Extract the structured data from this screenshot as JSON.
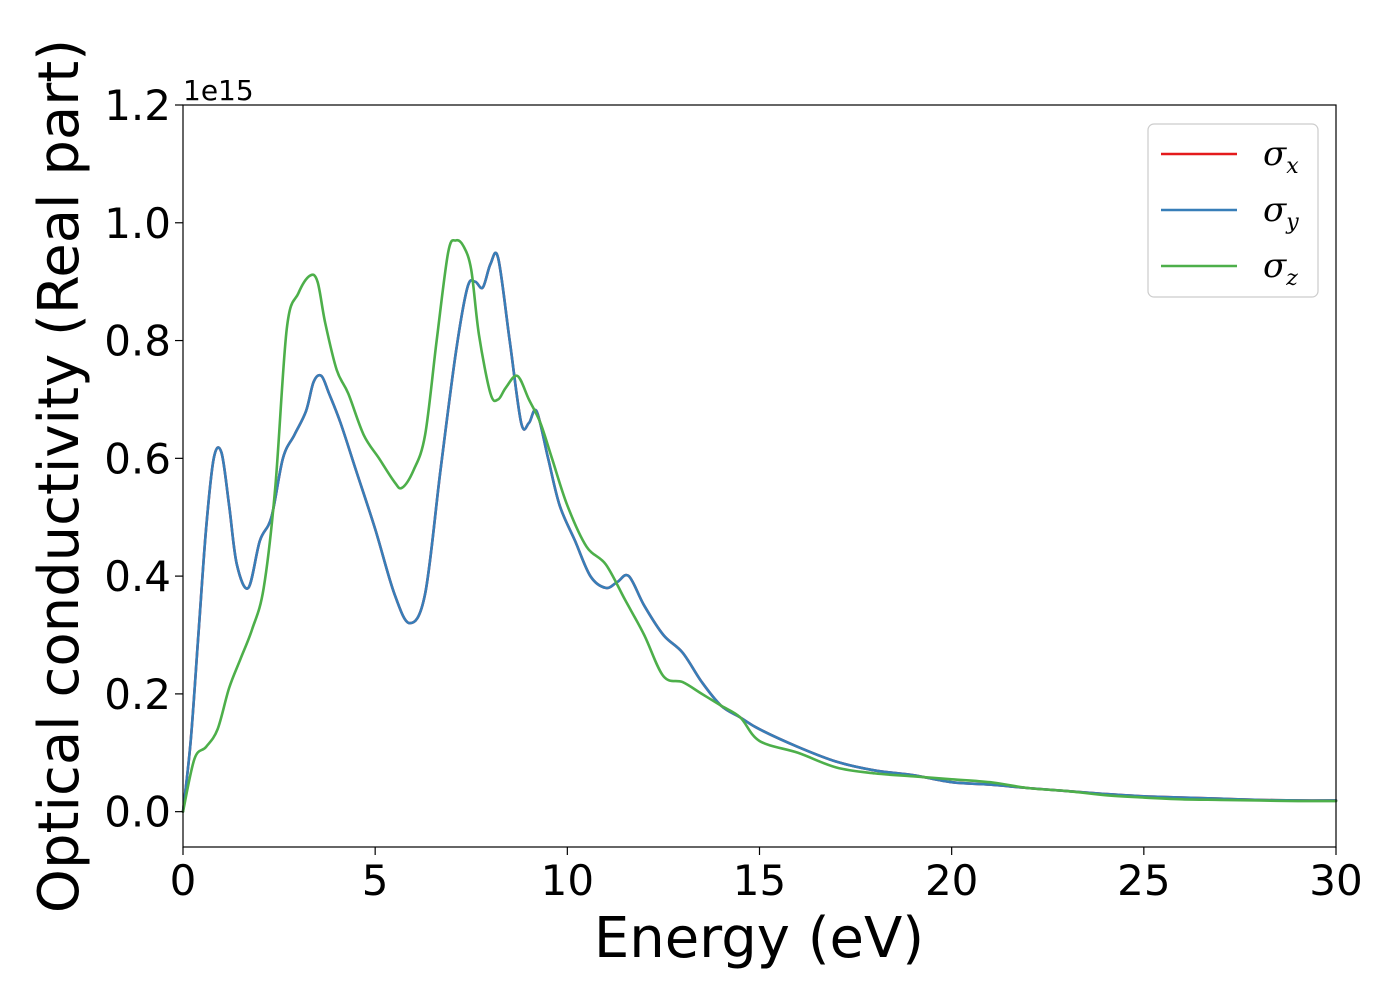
{
  "chart_data": {
    "type": "line",
    "title": "",
    "xlabel": "Energy (eV)",
    "ylabel": "Optical conductivity (Real part)",
    "y_offset_label": "1e15",
    "xlim": [
      0,
      30
    ],
    "ylim": [
      -0.06,
      1.2
    ],
    "x_ticks": [
      0,
      5,
      10,
      15,
      20,
      25,
      30
    ],
    "x_tick_labels": [
      "0",
      "5",
      "10",
      "15",
      "20",
      "25",
      "30"
    ],
    "y_ticks": [
      0.0,
      0.2,
      0.4,
      0.6,
      0.8,
      1.0,
      1.2
    ],
    "y_tick_labels": [
      "0.0",
      "0.2",
      "0.4",
      "0.6",
      "0.8",
      "1.0",
      "1.2"
    ],
    "grid": false,
    "legend_position": "top-right",
    "series": [
      {
        "name": "σx",
        "legend_symbol": "σ",
        "legend_subscript": "x",
        "color": "#e41a1c",
        "x": [
          0,
          0.2,
          0.4,
          0.6,
          0.8,
          1.0,
          1.2,
          1.4,
          1.7,
          2.0,
          2.3,
          2.6,
          2.9,
          3.2,
          3.4,
          3.6,
          3.8,
          4.1,
          4.5,
          5.0,
          5.5,
          5.9,
          6.3,
          6.7,
          7.1,
          7.4,
          7.6,
          7.8,
          8.0,
          8.2,
          8.5,
          8.8,
          9.0,
          9.2,
          9.5,
          9.8,
          10.2,
          10.6,
          11.0,
          11.3,
          11.6,
          12.0,
          12.5,
          13.0,
          13.5,
          14.0,
          14.5,
          15.0,
          16.0,
          17.0,
          18.0,
          19.0,
          20.0,
          21.0,
          22.0,
          23.0,
          24.0,
          25.0,
          26.0,
          27.0,
          28.0,
          29.0,
          30.0
        ],
        "y": [
          0.0,
          0.12,
          0.3,
          0.48,
          0.6,
          0.61,
          0.52,
          0.42,
          0.38,
          0.46,
          0.5,
          0.6,
          0.64,
          0.68,
          0.73,
          0.74,
          0.71,
          0.66,
          0.58,
          0.48,
          0.37,
          0.32,
          0.37,
          0.58,
          0.78,
          0.89,
          0.9,
          0.89,
          0.93,
          0.94,
          0.8,
          0.66,
          0.66,
          0.68,
          0.6,
          0.52,
          0.46,
          0.4,
          0.38,
          0.39,
          0.4,
          0.35,
          0.3,
          0.27,
          0.22,
          0.18,
          0.16,
          0.14,
          0.11,
          0.085,
          0.07,
          0.062,
          0.05,
          0.046,
          0.04,
          0.035,
          0.03,
          0.026,
          0.024,
          0.022,
          0.02,
          0.019,
          0.019
        ]
      },
      {
        "name": "σy",
        "legend_symbol": "σ",
        "legend_subscript": "y",
        "color": "#377eb8",
        "x": [
          0,
          0.2,
          0.4,
          0.6,
          0.8,
          1.0,
          1.2,
          1.4,
          1.7,
          2.0,
          2.3,
          2.6,
          2.9,
          3.2,
          3.4,
          3.6,
          3.8,
          4.1,
          4.5,
          5.0,
          5.5,
          5.9,
          6.3,
          6.7,
          7.1,
          7.4,
          7.6,
          7.8,
          8.0,
          8.2,
          8.5,
          8.8,
          9.0,
          9.2,
          9.5,
          9.8,
          10.2,
          10.6,
          11.0,
          11.3,
          11.6,
          12.0,
          12.5,
          13.0,
          13.5,
          14.0,
          14.5,
          15.0,
          16.0,
          17.0,
          18.0,
          19.0,
          20.0,
          21.0,
          22.0,
          23.0,
          24.0,
          25.0,
          26.0,
          27.0,
          28.0,
          29.0,
          30.0
        ],
        "y": [
          0.0,
          0.12,
          0.3,
          0.48,
          0.6,
          0.61,
          0.52,
          0.42,
          0.38,
          0.46,
          0.5,
          0.6,
          0.64,
          0.68,
          0.73,
          0.74,
          0.71,
          0.66,
          0.58,
          0.48,
          0.37,
          0.32,
          0.37,
          0.58,
          0.78,
          0.89,
          0.9,
          0.89,
          0.93,
          0.94,
          0.8,
          0.66,
          0.66,
          0.68,
          0.6,
          0.52,
          0.46,
          0.4,
          0.38,
          0.39,
          0.4,
          0.35,
          0.3,
          0.27,
          0.22,
          0.18,
          0.16,
          0.14,
          0.11,
          0.085,
          0.07,
          0.062,
          0.05,
          0.046,
          0.04,
          0.035,
          0.03,
          0.026,
          0.024,
          0.022,
          0.02,
          0.019,
          0.019
        ]
      },
      {
        "name": "σz",
        "legend_symbol": "σ",
        "legend_subscript": "z",
        "color": "#4daf4a",
        "x": [
          0,
          0.3,
          0.6,
          0.9,
          1.2,
          1.5,
          1.8,
          2.1,
          2.4,
          2.7,
          3.0,
          3.3,
          3.5,
          3.7,
          4.0,
          4.3,
          4.7,
          5.1,
          5.5,
          5.7,
          6.0,
          6.3,
          6.6,
          6.9,
          7.1,
          7.3,
          7.5,
          7.7,
          8.0,
          8.2,
          8.4,
          8.7,
          9.0,
          9.3,
          9.6,
          10.0,
          10.5,
          11.0,
          11.5,
          12.0,
          12.5,
          13.0,
          13.5,
          14.0,
          14.5,
          15.0,
          16.0,
          17.0,
          18.0,
          19.0,
          20.0,
          21.0,
          22.0,
          23.0,
          24.0,
          25.0,
          26.0,
          27.0,
          28.0,
          29.0,
          30.0
        ],
        "y": [
          0.0,
          0.09,
          0.11,
          0.14,
          0.21,
          0.26,
          0.31,
          0.38,
          0.55,
          0.82,
          0.88,
          0.91,
          0.9,
          0.83,
          0.75,
          0.71,
          0.64,
          0.6,
          0.56,
          0.55,
          0.58,
          0.64,
          0.8,
          0.95,
          0.97,
          0.96,
          0.92,
          0.81,
          0.71,
          0.7,
          0.72,
          0.74,
          0.7,
          0.66,
          0.6,
          0.52,
          0.45,
          0.42,
          0.36,
          0.3,
          0.23,
          0.22,
          0.2,
          0.18,
          0.16,
          0.12,
          0.1,
          0.075,
          0.065,
          0.06,
          0.055,
          0.05,
          0.04,
          0.035,
          0.028,
          0.024,
          0.021,
          0.02,
          0.019,
          0.018,
          0.018
        ]
      }
    ]
  }
}
